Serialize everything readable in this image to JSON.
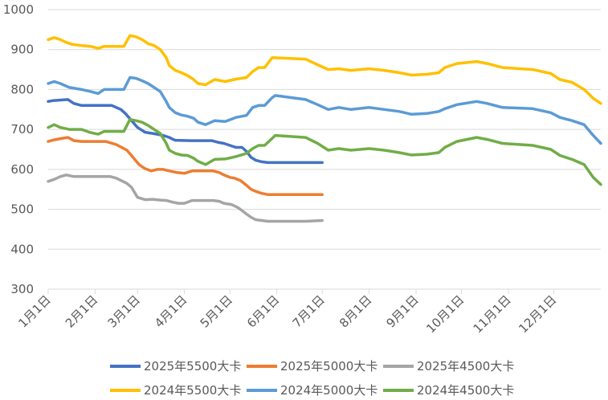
{
  "chart_data": {
    "type": "line",
    "title": "",
    "xlabel": "",
    "ylabel": "",
    "ylim": [
      300,
      1000
    ],
    "yticks": [
      300,
      400,
      500,
      600,
      700,
      800,
      900,
      1000
    ],
    "x_ticks": [
      "1月1日",
      "2月1日",
      "3月1日",
      "4月1日",
      "5月1日",
      "6月1日",
      "7月1日",
      "8月1日",
      "9月1日",
      "10月1日",
      "11月1日",
      "12月1日"
    ],
    "x_tick_days": [
      0,
      31,
      59,
      90,
      120,
      151,
      181,
      212,
      243,
      273,
      304,
      334
    ],
    "grid": "horizontal",
    "legend_position": "bottom",
    "series": [
      {
        "name": "2025年5500大卡",
        "color": "#4472C4",
        "days": [
          0,
          3,
          6,
          13,
          17,
          22,
          42,
          48,
          51,
          59,
          64,
          69,
          72,
          76,
          80,
          82,
          84,
          94,
          108,
          112,
          116,
          120,
          124,
          128,
          131,
          134,
          137,
          141,
          145,
          181
        ],
        "values": [
          770,
          772,
          773,
          775,
          765,
          760,
          760,
          750,
          740,
          705,
          693,
          690,
          688,
          685,
          680,
          676,
          673,
          672,
          672,
          668,
          665,
          660,
          655,
          655,
          645,
          630,
          623,
          619,
          617,
          617
        ]
      },
      {
        "name": "2025年5000大卡",
        "color": "#ED7D31",
        "days": [
          0,
          4,
          8,
          13,
          17,
          22,
          38,
          45,
          52,
          56,
          60,
          64,
          68,
          72,
          76,
          80,
          85,
          90,
          95,
          109,
          113,
          116,
          120,
          123,
          127,
          131,
          134,
          137,
          141,
          145,
          181
        ],
        "values": [
          670,
          674,
          677,
          680,
          672,
          670,
          670,
          662,
          648,
          630,
          612,
          602,
          596,
          600,
          600,
          596,
          592,
          590,
          596,
          596,
          592,
          586,
          580,
          578,
          572,
          560,
          550,
          545,
          540,
          537,
          537
        ]
      },
      {
        "name": "2025年4500大卡",
        "color": "#A5A5A5",
        "days": [
          0,
          4,
          8,
          12,
          17,
          22,
          41,
          45,
          52,
          55,
          59,
          64,
          69,
          74,
          78,
          82,
          86,
          90,
          95,
          109,
          113,
          116,
          121,
          125,
          128,
          131,
          134,
          137,
          141,
          145,
          170,
          181
        ],
        "values": [
          570,
          575,
          582,
          586,
          582,
          582,
          582,
          578,
          565,
          555,
          530,
          524,
          525,
          523,
          522,
          518,
          515,
          515,
          522,
          522,
          520,
          515,
          512,
          505,
          497,
          488,
          480,
          474,
          472,
          470,
          470,
          472
        ]
      },
      {
        "name": "2024年5500大卡",
        "color": "#FFC000",
        "days": [
          0,
          4,
          8,
          12,
          16,
          22,
          28,
          33,
          37,
          50,
          54,
          58,
          62,
          66,
          70,
          74,
          78,
          80,
          84,
          88,
          92,
          96,
          99,
          104,
          110,
          117,
          124,
          131,
          135,
          139,
          143,
          148,
          170,
          178,
          185,
          192,
          200,
          212,
          222,
          232,
          240,
          250,
          258,
          262,
          270,
          283,
          290,
          300,
          320,
          332,
          338,
          346,
          354,
          360,
          365
        ],
        "values": [
          925,
          930,
          925,
          918,
          913,
          910,
          908,
          903,
          908,
          908,
          935,
          932,
          925,
          915,
          910,
          900,
          880,
          860,
          848,
          842,
          835,
          825,
          815,
          812,
          825,
          820,
          826,
          830,
          845,
          855,
          855,
          880,
          876,
          862,
          850,
          852,
          848,
          852,
          848,
          842,
          836,
          838,
          842,
          855,
          865,
          870,
          865,
          855,
          850,
          840,
          825,
          818,
          800,
          778,
          765
        ]
      },
      {
        "name": "2024年5000大卡",
        "color": "#5B9BD5",
        "days": [
          0,
          4,
          8,
          14,
          22,
          28,
          33,
          37,
          50,
          54,
          58,
          62,
          66,
          70,
          74,
          78,
          80,
          84,
          88,
          92,
          96,
          99,
          104,
          110,
          117,
          124,
          131,
          135,
          139,
          143,
          148,
          150,
          170,
          178,
          185,
          192,
          200,
          212,
          222,
          232,
          240,
          250,
          258,
          262,
          270,
          283,
          290,
          300,
          320,
          332,
          338,
          346,
          354,
          360,
          365
        ],
        "values": [
          815,
          820,
          815,
          805,
          800,
          795,
          790,
          800,
          800,
          830,
          828,
          822,
          815,
          805,
          795,
          770,
          755,
          742,
          736,
          733,
          728,
          718,
          712,
          722,
          720,
          730,
          735,
          755,
          760,
          760,
          780,
          785,
          775,
          762,
          750,
          755,
          750,
          755,
          750,
          745,
          738,
          740,
          745,
          752,
          762,
          770,
          765,
          755,
          752,
          742,
          730,
          722,
          712,
          685,
          665
        ]
      },
      {
        "name": "2024年4500大卡",
        "color": "#70AD47",
        "days": [
          0,
          4,
          8,
          14,
          22,
          28,
          33,
          37,
          50,
          54,
          58,
          62,
          66,
          70,
          74,
          78,
          80,
          84,
          88,
          92,
          96,
          99,
          104,
          110,
          117,
          124,
          131,
          135,
          139,
          143,
          148,
          150,
          170,
          178,
          185,
          192,
          200,
          212,
          222,
          232,
          240,
          250,
          258,
          262,
          270,
          283,
          290,
          300,
          320,
          332,
          338,
          346,
          354,
          360,
          365
        ],
        "values": [
          705,
          712,
          705,
          700,
          700,
          692,
          688,
          695,
          695,
          725,
          722,
          718,
          710,
          700,
          690,
          665,
          648,
          640,
          636,
          635,
          628,
          620,
          612,
          625,
          626,
          632,
          640,
          652,
          660,
          660,
          678,
          685,
          680,
          665,
          648,
          652,
          648,
          652,
          648,
          642,
          636,
          638,
          642,
          655,
          670,
          680,
          675,
          665,
          660,
          650,
          635,
          625,
          612,
          580,
          562
        ]
      }
    ]
  }
}
